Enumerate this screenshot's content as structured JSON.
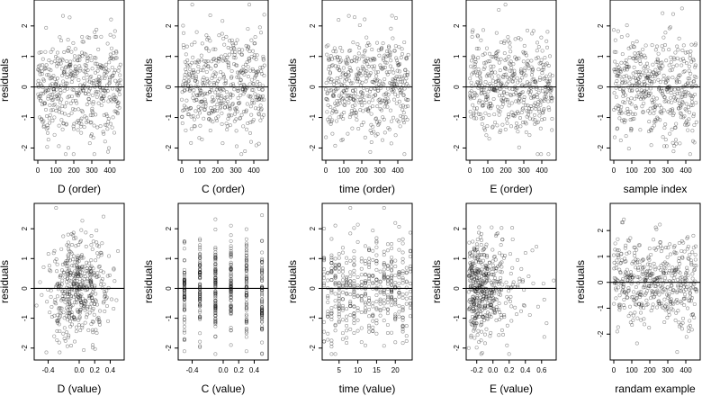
{
  "chart_data": [
    {
      "type": "scatter",
      "xlabel": "D (order)",
      "ylabel": "residuals",
      "xlim": [
        -20,
        480
      ],
      "ylim": [
        -2.4,
        2.85
      ],
      "xticks": [
        0,
        100,
        200,
        300,
        400
      ],
      "xtick_labels": [
        "0",
        "100",
        "200",
        "300",
        "400"
      ],
      "yticks": [
        -2,
        -1,
        0,
        1,
        2
      ],
      "ytick_labels": [
        "-2",
        "-1",
        "0",
        "1",
        "2"
      ],
      "hline": 0,
      "n_points": 460,
      "x_distribution": "index",
      "y_range": [
        -2.2,
        2.7
      ],
      "seed": 11
    },
    {
      "type": "scatter",
      "xlabel": "C (order)",
      "ylabel": "residuals",
      "xlim": [
        -20,
        480
      ],
      "ylim": [
        -2.4,
        2.85
      ],
      "xticks": [
        0,
        100,
        200,
        300,
        400
      ],
      "xtick_labels": [
        "0",
        "100",
        "200",
        "300",
        "400"
      ],
      "yticks": [
        -2,
        -1,
        0,
        1,
        2
      ],
      "ytick_labels": [
        "-2",
        "-1",
        "0",
        "1",
        "2"
      ],
      "hline": 0,
      "n_points": 460,
      "x_distribution": "index",
      "y_range": [
        -2.2,
        2.7
      ],
      "seed": 12
    },
    {
      "type": "scatter",
      "xlabel": "time (order)",
      "ylabel": "residuals",
      "xlim": [
        -20,
        480
      ],
      "ylim": [
        -2.4,
        2.85
      ],
      "xticks": [
        0,
        100,
        200,
        300,
        400
      ],
      "xtick_labels": [
        "0",
        "100",
        "200",
        "300",
        "400"
      ],
      "yticks": [
        -2,
        -1,
        0,
        1,
        2
      ],
      "ytick_labels": [
        "-2",
        "-1",
        "0",
        "1",
        "2"
      ],
      "hline": 0,
      "n_points": 460,
      "x_distribution": "index",
      "y_range": [
        -2.2,
        2.7
      ],
      "seed": 13
    },
    {
      "type": "scatter",
      "xlabel": "E (order)",
      "ylabel": "residuals",
      "xlim": [
        -20,
        480
      ],
      "ylim": [
        -2.4,
        2.85
      ],
      "xticks": [
        0,
        100,
        200,
        300,
        400
      ],
      "xtick_labels": [
        "0",
        "100",
        "200",
        "300",
        "400"
      ],
      "yticks": [
        -2,
        -1,
        0,
        1,
        2
      ],
      "ytick_labels": [
        "-2",
        "-1",
        "0",
        "1",
        "2"
      ],
      "hline": 0,
      "n_points": 460,
      "x_distribution": "index",
      "y_range": [
        -2.2,
        2.7
      ],
      "seed": 14
    },
    {
      "type": "scatter",
      "xlabel": "sample index",
      "ylabel": "residuals",
      "xlim": [
        -20,
        480
      ],
      "ylim": [
        -2.4,
        2.85
      ],
      "xticks": [
        0,
        100,
        200,
        300,
        400
      ],
      "xtick_labels": [
        "0",
        "100",
        "200",
        "300",
        "400"
      ],
      "yticks": [
        -2,
        -1,
        0,
        1,
        2
      ],
      "ytick_labels": [
        "-2",
        "-1",
        "0",
        "1",
        "2"
      ],
      "hline": 0,
      "n_points": 460,
      "x_distribution": "index",
      "y_range": [
        -2.2,
        2.7
      ],
      "seed": 15
    },
    {
      "type": "scatter",
      "xlabel": "D (value)",
      "ylabel": "residuals",
      "xlim": [
        -0.58,
        0.58
      ],
      "ylim": [
        -2.4,
        2.85
      ],
      "xticks": [
        -0.4,
        0,
        0.2,
        0.4
      ],
      "xtick_labels": [
        "-0.4",
        "0.0",
        "0.2",
        "0.4"
      ],
      "yticks": [
        -2,
        -1,
        0,
        1,
        2
      ],
      "ytick_labels": [
        "-2",
        "-1",
        "0",
        "1",
        "2"
      ],
      "hline": 0,
      "n_points": 460,
      "x_distribution": "normal",
      "x_center": 0.0,
      "x_spread": 0.2,
      "x_range": [
        -0.55,
        0.55
      ],
      "y_range": [
        -2.2,
        2.7
      ],
      "seed": 21
    },
    {
      "type": "scatter",
      "xlabel": "C (value)",
      "ylabel": "residuals",
      "xlim": [
        -0.58,
        0.58
      ],
      "ylim": [
        -2.4,
        2.85
      ],
      "xticks": [
        -0.4,
        0,
        0.2,
        0.4
      ],
      "xtick_labels": [
        "-0.4",
        "0.0",
        "0.2",
        "0.4"
      ],
      "yticks": [
        -2,
        -1,
        0,
        1,
        2
      ],
      "ytick_labels": [
        "-2",
        "-1",
        "0",
        "1",
        "2"
      ],
      "hline": 0,
      "n_points": 460,
      "x_distribution": "discrete",
      "x_levels": [
        -0.5,
        -0.3,
        -0.1,
        0.1,
        0.3,
        0.5
      ],
      "y_range": [
        -2.2,
        2.7
      ],
      "seed": 22
    },
    {
      "type": "scatter",
      "xlabel": "time (value)",
      "ylabel": "residuals",
      "xlim": [
        0.5,
        24.5
      ],
      "ylim": [
        -2.4,
        2.85
      ],
      "xticks": [
        5,
        10,
        15,
        20
      ],
      "xtick_labels": [
        "5",
        "10",
        "15",
        "20"
      ],
      "yticks": [
        -2,
        -1,
        0,
        1,
        2
      ],
      "ytick_labels": [
        "-2",
        "-1",
        "0",
        "1",
        "2"
      ],
      "hline": 0,
      "n_points": 460,
      "x_distribution": "integer",
      "x_range": [
        1,
        24
      ],
      "y_range": [
        -2.2,
        2.7
      ],
      "seed": 23
    },
    {
      "type": "scatter",
      "xlabel": "E (value)",
      "ylabel": "residuals",
      "xlim": [
        -0.33,
        0.78
      ],
      "ylim": [
        -2.4,
        2.85
      ],
      "xticks": [
        -0.2,
        0,
        0.2,
        0.4,
        0.6
      ],
      "xtick_labels": [
        "-0.2",
        "0.0",
        "0.2",
        "0.4",
        "0.6"
      ],
      "yticks": [
        -2,
        -1,
        0,
        1,
        2
      ],
      "ytick_labels": [
        "-2",
        "-1",
        "0",
        "1",
        "2"
      ],
      "hline": 0,
      "n_points": 460,
      "x_distribution": "skewed",
      "x_min": -0.3,
      "x_spread": 0.4,
      "x_range": [
        -0.3,
        0.75
      ],
      "y_range": [
        -2.2,
        2.7
      ],
      "seed": 24
    },
    {
      "type": "scatter",
      "xlabel": "randam example",
      "ylabel": "residuals",
      "xlim": [
        -20,
        480
      ],
      "ylim": [
        -3.0,
        3.05
      ],
      "xticks": [
        0,
        100,
        200,
        300,
        400
      ],
      "xtick_labels": [
        "0",
        "100",
        "200",
        "300",
        "400"
      ],
      "yticks": [
        -2,
        -1,
        0,
        1,
        2
      ],
      "ytick_labels": [
        "-2",
        "-1",
        "0",
        "1",
        "2"
      ],
      "hline": 0,
      "n_points": 460,
      "x_distribution": "index",
      "y_range": [
        -2.8,
        2.8
      ],
      "seed": 25
    }
  ]
}
